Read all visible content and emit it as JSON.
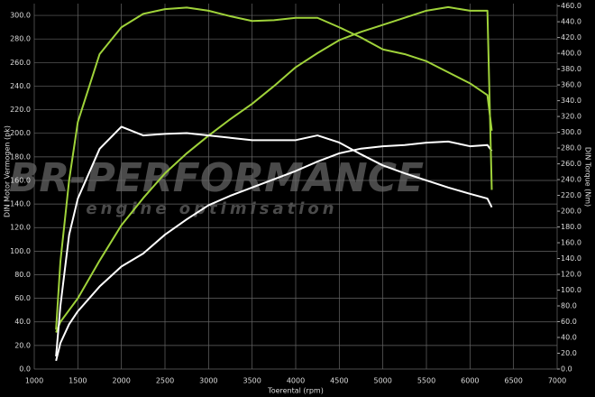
{
  "chart_data": {
    "type": "line",
    "watermark": "BR-PERFORMANCE",
    "watermark_subtitle": "engine optimisation",
    "xlabel": "Toerental (rpm)",
    "ylabel": "DIN Motor Vermogen (pk)",
    "y2label": "DIN Torque (Nm)",
    "x": [
      1250,
      1300,
      1400,
      1500,
      1750,
      2000,
      2250,
      2500,
      2750,
      3000,
      3250,
      3500,
      3750,
      4000,
      4250,
      4500,
      4750,
      5000,
      5250,
      5500,
      5750,
      6000,
      6200,
      6250
    ],
    "series": [
      {
        "color": "#ffffff",
        "values": [
          7,
          22,
          38,
          49,
          70,
          87,
          98,
          114,
          127,
          139,
          147,
          154,
          161,
          168,
          176,
          183,
          187,
          189,
          190,
          192,
          193,
          189,
          190,
          185
        ]
      },
      {
        "color": "#9fd23a",
        "values": [
          31,
          40,
          50,
          60,
          92,
          122,
          145,
          166,
          183,
          198,
          212,
          225,
          240,
          256,
          268,
          279,
          286,
          292,
          298,
          304,
          307,
          304,
          304,
          152
        ]
      },
      {
        "color": "#ffffff",
        "axis": "y2",
        "values": [
          16,
          80,
          170,
          216,
          279,
          307,
          296,
          298,
          299,
          296,
          293,
          290,
          290,
          290,
          296,
          287,
          272,
          258,
          248,
          239,
          230,
          222,
          216,
          205
        ]
      },
      {
        "color": "#9fd23a",
        "axis": "y2",
        "values": [
          50,
          136,
          239,
          313,
          399,
          433,
          450,
          456,
          458,
          454,
          447,
          441,
          442,
          445,
          445,
          433,
          420,
          405,
          399,
          390,
          376,
          362,
          347,
          302
        ]
      }
    ],
    "xlim": [
      1000,
      7000
    ],
    "xticks": [
      1000,
      1500,
      2000,
      2500,
      3000,
      3500,
      4000,
      4500,
      5000,
      5500,
      6000,
      6500,
      7000
    ],
    "ylim": [
      0,
      310
    ],
    "yticks": [
      {
        "value": 0,
        "label": "0.0"
      },
      {
        "value": 20,
        "label": "20.0"
      },
      {
        "value": 40,
        "label": "40.0"
      },
      {
        "value": 60,
        "label": "60.0"
      },
      {
        "value": 80,
        "label": "80.0"
      },
      {
        "value": 100,
        "label": "100.0"
      },
      {
        "value": 120,
        "label": "120.0"
      },
      {
        "value": 140,
        "label": "140.0"
      },
      {
        "value": 160,
        "label": "160.0"
      },
      {
        "value": 180,
        "label": "180.0"
      },
      {
        "value": 200,
        "label": "200.0"
      },
      {
        "value": 220,
        "label": "220.0"
      },
      {
        "value": 240,
        "label": "240.0"
      },
      {
        "value": 260,
        "label": "260.0"
      },
      {
        "value": 280,
        "label": "280.0"
      },
      {
        "value": 300,
        "label": "300.0"
      }
    ],
    "y2lim": [
      0,
      463
    ],
    "y2ticks": [
      {
        "value": 0,
        "label": "0.0"
      },
      {
        "value": 20,
        "label": "20.0"
      },
      {
        "value": 40,
        "label": "40.0"
      },
      {
        "value": 60,
        "label": "60.0"
      },
      {
        "value": 80,
        "label": "80.0"
      },
      {
        "value": 100,
        "label": "100.0"
      },
      {
        "value": 120,
        "label": "120.0"
      },
      {
        "value": 140,
        "label": "140.0"
      },
      {
        "value": 160,
        "label": "160.0"
      },
      {
        "value": 180,
        "label": "180.0"
      },
      {
        "value": 200,
        "label": "200.0"
      },
      {
        "value": 220,
        "label": "220.0"
      },
      {
        "value": 240,
        "label": "240.0"
      },
      {
        "value": 260,
        "label": "260.0"
      },
      {
        "value": 280,
        "label": "280.0"
      },
      {
        "value": 300,
        "label": "300.0"
      },
      {
        "value": 320,
        "label": "320.0"
      },
      {
        "value": 340,
        "label": "340.0"
      },
      {
        "value": 360,
        "label": "360.0"
      },
      {
        "value": 380,
        "label": "380.0"
      },
      {
        "value": 400,
        "label": "400.0"
      },
      {
        "value": 420,
        "label": "420.0"
      },
      {
        "value": 440,
        "label": "440.0"
      },
      {
        "value": 460,
        "label": "460.0"
      }
    ],
    "grid": true
  }
}
